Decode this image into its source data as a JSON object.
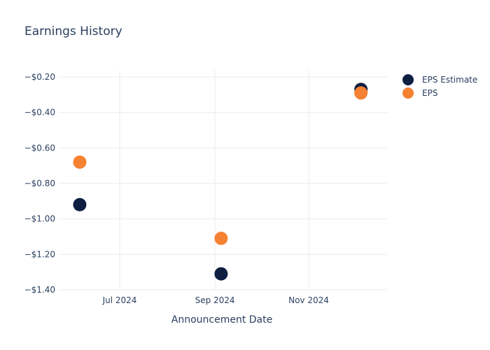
{
  "chart_data": {
    "type": "scatter",
    "title": "Earnings History",
    "xlabel": "Announcement Date",
    "ylabel": "",
    "x_ticks": [
      "Jul 2024",
      "Sep 2024",
      "Nov 2024"
    ],
    "y_ticks": [
      "−$1.40",
      "−$1.20",
      "−$1.00",
      "−$0.80",
      "−$0.60",
      "−$0.40",
      "−$0.20"
    ],
    "ylim": [
      -1.4,
      -0.2
    ],
    "grid": true,
    "legend_position": "top-right",
    "series": [
      {
        "name": "EPS Estimate",
        "color": "#0e1f42",
        "points": [
          {
            "x": "2024-06-05",
            "y": -0.92
          },
          {
            "x": "2024-09-05",
            "y": -1.31
          },
          {
            "x": "2024-12-05",
            "y": -0.27
          }
        ]
      },
      {
        "name": "EPS",
        "color": "#f58133",
        "points": [
          {
            "x": "2024-06-05",
            "y": -0.68
          },
          {
            "x": "2024-09-05",
            "y": -1.11
          },
          {
            "x": "2024-12-05",
            "y": -0.29
          }
        ]
      }
    ]
  }
}
